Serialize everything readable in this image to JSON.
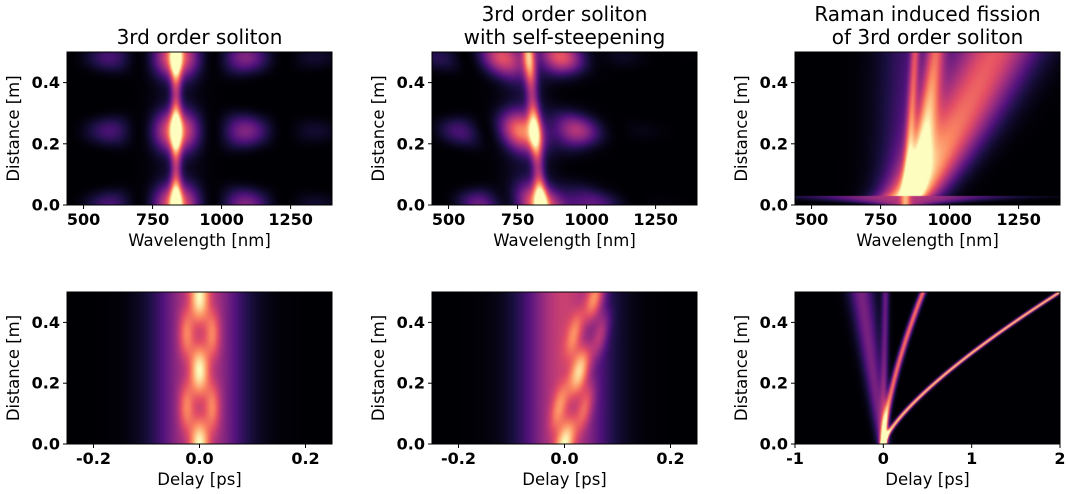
{
  "colormap": [
    "#000004",
    "#1c1044",
    "#4f127b",
    "#812581",
    "#b5367a",
    "#e55064",
    "#fb8761",
    "#fec287",
    "#fcfdbf"
  ],
  "chart_data": [
    {
      "type": "heatmap",
      "title": "3rd order soliton",
      "xlabel": "Wavelength [nm]",
      "ylabel": "Distance [m]",
      "xlim": [
        440,
        1400
      ],
      "ylim": [
        0,
        0.5
      ],
      "xticks": [
        500,
        750,
        1000,
        1250
      ],
      "yticks": [
        0.0,
        0.2,
        0.4
      ],
      "pattern": "spectral_breathing"
    },
    {
      "type": "heatmap",
      "title": "3rd order soliton\nwith self-steepening",
      "xlabel": "Wavelength [nm]",
      "ylabel": "Distance [m]",
      "xlim": [
        440,
        1400
      ],
      "ylim": [
        0,
        0.5
      ],
      "xticks": [
        500,
        750,
        1000,
        1250
      ],
      "yticks": [
        0.0,
        0.2,
        0.4
      ],
      "pattern": "spectral_steepening"
    },
    {
      "type": "heatmap",
      "title": "Raman induced fission\nof 3rd order soliton",
      "xlabel": "Wavelength [nm]",
      "ylabel": "Distance [m]",
      "xlim": [
        440,
        1400
      ],
      "ylim": [
        0,
        0.5
      ],
      "xticks": [
        500,
        750,
        1000,
        1250
      ],
      "yticks": [
        0.0,
        0.2,
        0.4
      ],
      "pattern": "spectral_fission"
    },
    {
      "type": "heatmap",
      "title": "",
      "xlabel": "Delay [ps]",
      "ylabel": "Distance [m]",
      "xlim": [
        -0.25,
        0.25
      ],
      "ylim": [
        0,
        0.5
      ],
      "xticks": [
        -0.2,
        0.0,
        0.2
      ],
      "yticks": [
        0.0,
        0.2,
        0.4
      ],
      "pattern": "temporal_breathing"
    },
    {
      "type": "heatmap",
      "title": "",
      "xlabel": "Delay [ps]",
      "ylabel": "Distance [m]",
      "xlim": [
        -0.25,
        0.25
      ],
      "ylim": [
        0,
        0.5
      ],
      "xticks": [
        -0.2,
        0.0,
        0.2
      ],
      "yticks": [
        0.0,
        0.2,
        0.4
      ],
      "pattern": "temporal_steepening"
    },
    {
      "type": "heatmap",
      "title": "",
      "xlabel": "Delay [ps]",
      "ylabel": "Distance [m]",
      "xlim": [
        -1,
        2
      ],
      "ylim": [
        0,
        0.5
      ],
      "xticks": [
        -1,
        0,
        1,
        2
      ],
      "yticks": [
        0.0,
        0.2,
        0.4
      ],
      "pattern": "temporal_fission"
    }
  ]
}
